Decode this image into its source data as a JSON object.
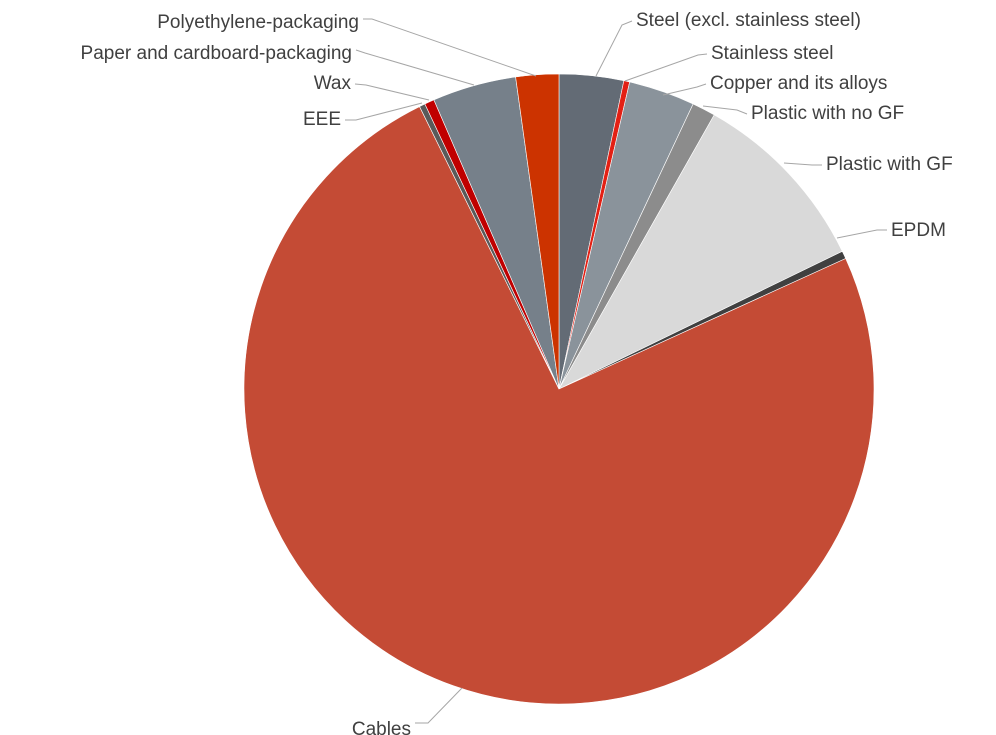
{
  "chart_data": {
    "type": "pie",
    "title": "",
    "legend": "none",
    "start_angle_deg": 0,
    "direction": "clockwise",
    "slices": [
      {
        "label": "Steel (excl. stainless steel)",
        "value": 3.3,
        "color": "#636b75"
      },
      {
        "label": "Stainless steel",
        "value": 0.3,
        "color": "#e32014"
      },
      {
        "label": "Copper and its alloys",
        "value": 3.4,
        "color": "#8a939b"
      },
      {
        "label": "Plastic with no GF",
        "value": 1.2,
        "color": "#8c8c8c"
      },
      {
        "label": "Plastic with GF",
        "value": 9.6,
        "color": "#d9d9d9"
      },
      {
        "label": "EPDM",
        "value": 0.4,
        "color": "#404040"
      },
      {
        "label": "Cables",
        "value": 74.5,
        "color": "#c44b35"
      },
      {
        "label": "EEE",
        "value": 0.3,
        "color": "#5a5a5a"
      },
      {
        "label": "Wax",
        "value": 0.5,
        "color": "#c00000"
      },
      {
        "label": "Paper and cardboard-packaging",
        "value": 4.3,
        "color": "#76808a"
      },
      {
        "label": "Polyethylene-packaging",
        "value": 2.2,
        "color": "#cc3300"
      }
    ]
  }
}
